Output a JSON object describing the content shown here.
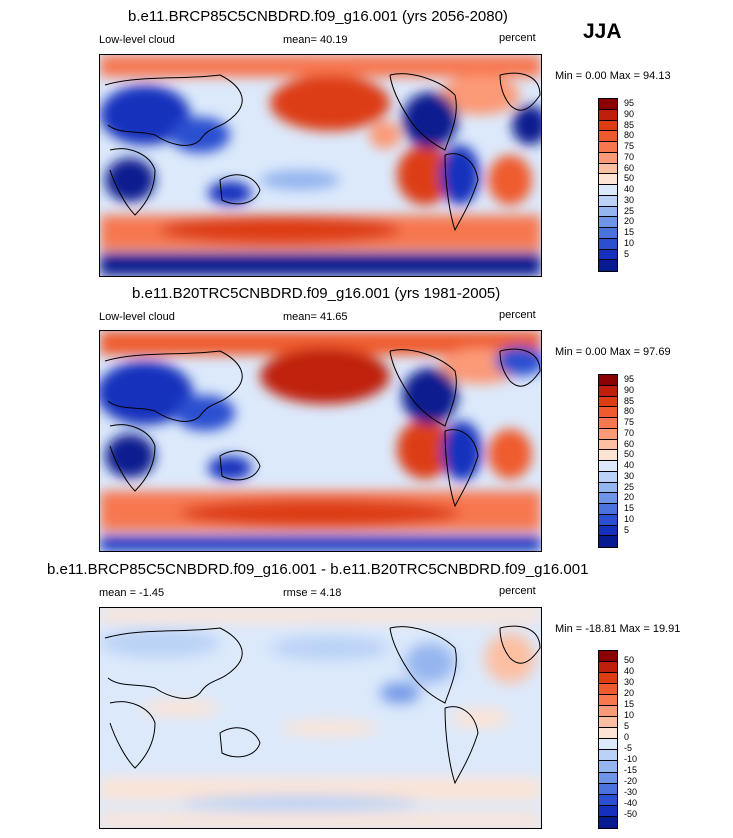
{
  "season": "JJA",
  "panels": [
    {
      "title": "b.e11.BRCP85C5CNBDRD.f09_g16.001 (yrs 2056-2080)",
      "left_label": "Low-level cloud",
      "center_label": "mean=  40.19",
      "right_label": "percent",
      "minmax": "Min =   0.00 Max =  94.13",
      "levels": [
        "95",
        "90",
        "85",
        "80",
        "75",
        "70",
        "60",
        "50",
        "40",
        "30",
        "25",
        "20",
        "15",
        "10",
        "5"
      ],
      "colors": [
        "#8b0000",
        "#c0200b",
        "#dd3d14",
        "#ef5b2e",
        "#f7774f",
        "#fb9a77",
        "#fdbfa2",
        "#fde4d5",
        "#dce9fb",
        "#b9d2f6",
        "#94b5ef",
        "#6d94e6",
        "#4a72dc",
        "#2b4fd0",
        "#1530bd",
        "#071a8f"
      ]
    },
    {
      "title": "b.e11.B20TRC5CNBDRD.f09_g16.001 (yrs 1981-2005)",
      "left_label": "Low-level cloud",
      "center_label": "mean=  41.65",
      "right_label": "percent",
      "minmax": "Min =   0.00 Max =  97.69",
      "levels": [
        "95",
        "90",
        "85",
        "80",
        "75",
        "70",
        "60",
        "50",
        "40",
        "30",
        "25",
        "20",
        "15",
        "10",
        "5"
      ],
      "colors": [
        "#8b0000",
        "#c0200b",
        "#dd3d14",
        "#ef5b2e",
        "#f7774f",
        "#fb9a77",
        "#fdbfa2",
        "#fde4d5",
        "#dce9fb",
        "#b9d2f6",
        "#94b5ef",
        "#6d94e6",
        "#4a72dc",
        "#2b4fd0",
        "#1530bd",
        "#071a8f"
      ]
    },
    {
      "title": "b.e11.BRCP85C5CNBDRD.f09_g16.001 - b.e11.B20TRC5CNBDRD.f09_g16.001",
      "left_label": "mean =  -1.45",
      "center_label": "rmse =   4.18",
      "right_label": "percent",
      "minmax": "Min = -18.81 Max =  19.91",
      "levels": [
        "50",
        "40",
        "30",
        "20",
        "15",
        "10",
        "5",
        "0",
        "-5",
        "-10",
        "-15",
        "-20",
        "-30",
        "-40",
        "-50"
      ],
      "colors": [
        "#8b0000",
        "#c0200b",
        "#dd3d14",
        "#ef5b2e",
        "#f7774f",
        "#fb9a77",
        "#fdbfa2",
        "#fde4d5",
        "#dce9fb",
        "#b9d2f6",
        "#94b5ef",
        "#6d94e6",
        "#4a72dc",
        "#2b4fd0",
        "#1530bd",
        "#071a8f"
      ]
    }
  ]
}
